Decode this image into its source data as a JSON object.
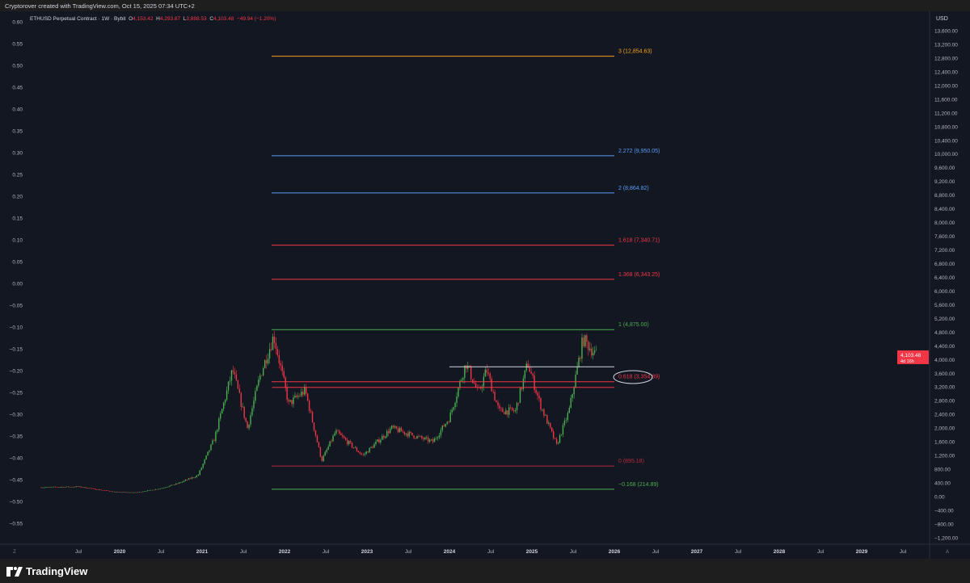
{
  "header": {
    "credit": "Cryptorover created with TradingView.com, Oct 15, 2025 07:34 UTC+2"
  },
  "legend": {
    "symbol": "ETHUSD Perpetual Contract · 1W · Bybit",
    "o_label": "O",
    "open": "4,153.42",
    "h_label": "H",
    "high": "4,293.87",
    "l_label": "L",
    "low": "3,888.53",
    "c_label": "C",
    "close": "4,103.48",
    "change": "−49.94 (−1.20%)"
  },
  "price_badge": {
    "price": "4,103.48",
    "countdown": "4d 16h",
    "color": "#f23645"
  },
  "currency": "USD",
  "footer": {
    "brand": "TradingView"
  },
  "axis_buttons": {
    "left": "Z",
    "right": "A"
  },
  "colors": {
    "background": "#131722",
    "up": "#26a69a",
    "up_candle": "#4caf50",
    "down": "#f23645",
    "orange": "#f7a21b",
    "blue": "#5b9cf6",
    "green": "#4caf50",
    "red": "#f23645",
    "white": "#d1d4dc"
  },
  "chart_data": {
    "type": "candlestick",
    "timeframe": "1W",
    "y_right": {
      "label": "USD",
      "ticks": [
        "13,600.00",
        "13,200.00",
        "12,800.00",
        "12,400.00",
        "12,000.00",
        "11,600.00",
        "11,200.00",
        "10,800.00",
        "10,400.00",
        "10,000.00",
        "9,600.00",
        "9,200.00",
        "8,800.00",
        "8,400.00",
        "8,000.00",
        "7,600.00",
        "7,200.00",
        "6,800.00",
        "6,400.00",
        "6,000.00",
        "5,600.00",
        "5,200.00",
        "4,800.00",
        "4,400.00",
        "4,000.00",
        "3,600.00",
        "3,200.00",
        "2,800.00",
        "2,400.00",
        "2,000.00",
        "1,600.00",
        "1,200.00",
        "800.00",
        "400.00",
        "0.00",
        "−400.00",
        "−800.00",
        "−1,200.00"
      ],
      "range": [
        -1200,
        13600
      ]
    },
    "y_left": {
      "ticks": [
        "0.60",
        "0.55",
        "0.50",
        "0.45",
        "0.40",
        "0.35",
        "0.30",
        "0.25",
        "0.20",
        "0.15",
        "0.10",
        "0.05",
        "0.00",
        "−0.05",
        "−0.10",
        "−0.15",
        "−0.20",
        "−0.25",
        "−0.30",
        "−0.35",
        "−0.40",
        "−0.45",
        "−0.50",
        "−0.55"
      ]
    },
    "x_ticks": [
      {
        "label": "Jul",
        "date": 2019.5
      },
      {
        "label": "2020",
        "date": 2020,
        "bold": true
      },
      {
        "label": "Jul",
        "date": 2020.5
      },
      {
        "label": "2021",
        "date": 2021,
        "bold": true
      },
      {
        "label": "Jul",
        "date": 2021.5
      },
      {
        "label": "2022",
        "date": 2022,
        "bold": true
      },
      {
        "label": "Jul",
        "date": 2022.5
      },
      {
        "label": "2023",
        "date": 2023,
        "bold": true
      },
      {
        "label": "Jul",
        "date": 2023.5
      },
      {
        "label": "2024",
        "date": 2024,
        "bold": true
      },
      {
        "label": "Jul",
        "date": 2024.5
      },
      {
        "label": "2025",
        "date": 2025,
        "bold": true
      },
      {
        "label": "Jul",
        "date": 2025.5
      },
      {
        "label": "2026",
        "date": 2026,
        "bold": true
      },
      {
        "label": "Jul",
        "date": 2026.5
      },
      {
        "label": "2027",
        "date": 2027,
        "bold": true
      },
      {
        "label": "Jul",
        "date": 2027.5
      },
      {
        "label": "2028",
        "date": 2028,
        "bold": true
      },
      {
        "label": "Jul",
        "date": 2028.5
      },
      {
        "label": "2029",
        "date": 2029,
        "bold": true
      },
      {
        "label": "Jul",
        "date": 2029.5
      }
    ],
    "price_path": [
      [
        2019.05,
        270
      ],
      [
        2019.5,
        290
      ],
      [
        2019.95,
        135
      ],
      [
        2020.2,
        120
      ],
      [
        2020.5,
        240
      ],
      [
        2020.7,
        380
      ],
      [
        2020.95,
        620
      ],
      [
        2021.15,
        1700
      ],
      [
        2021.37,
        3700
      ],
      [
        2021.55,
        2000
      ],
      [
        2021.7,
        3500
      ],
      [
        2021.87,
        4700
      ],
      [
        2022.05,
        2700
      ],
      [
        2022.25,
        3100
      ],
      [
        2022.45,
        1050
      ],
      [
        2022.62,
        1900
      ],
      [
        2022.95,
        1200
      ],
      [
        2023.3,
        2000
      ],
      [
        2023.6,
        1750
      ],
      [
        2023.8,
        1600
      ],
      [
        2024.0,
        2300
      ],
      [
        2024.2,
        3900
      ],
      [
        2024.35,
        3000
      ],
      [
        2024.45,
        3700
      ],
      [
        2024.6,
        2500
      ],
      [
        2024.8,
        2500
      ],
      [
        2024.95,
        3900
      ],
      [
        2025.1,
        2700
      ],
      [
        2025.3,
        1500
      ],
      [
        2025.45,
        2500
      ],
      [
        2025.62,
        4600
      ],
      [
        2025.79,
        4103.48
      ]
    ],
    "fib_levels": [
      {
        "label": "3 (12,854.63)",
        "price": 12854.63,
        "color": "#f7a21b"
      },
      {
        "label": "2.272 (9,950.05)",
        "price": 9950.05,
        "color": "#5b9cf6"
      },
      {
        "label": "2 (8,864.82)",
        "price": 8864.82,
        "color": "#5b9cf6"
      },
      {
        "label": "1.618 (7,340.71)",
        "price": 7340.71,
        "color": "#f23645"
      },
      {
        "label": "1.368 (6,343.25)",
        "price": 6343.25,
        "color": "#f23645"
      },
      {
        "label": "1 (4,875.00)",
        "price": 4875.0,
        "color": "#4caf50"
      },
      {
        "label": "0.618 (3,354.89)",
        "price": 3354.89,
        "color": "#f23645"
      },
      {
        "label": "0 (895.18)",
        "price": 895.18,
        "color": "#b2283a"
      },
      {
        "label": "−0.168 (214.89)",
        "price": 214.89,
        "color": "#4caf50"
      }
    ],
    "horizontal_lines": [
      {
        "price": 3790,
        "color": "#d1d4dc",
        "from": 2024.0
      },
      {
        "price": 3190,
        "color": "#f23645",
        "from": 2021.85
      }
    ]
  }
}
